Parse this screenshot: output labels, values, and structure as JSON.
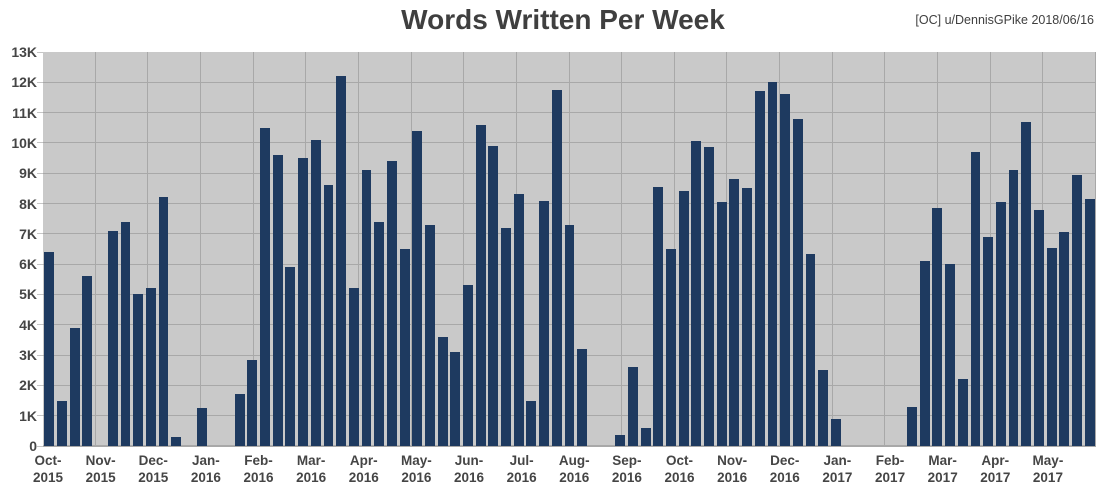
{
  "header": {
    "title": "Words Written Per Week",
    "attribution": "[OC] u/DennisGPike 2018/06/16"
  },
  "chart_data": {
    "type": "bar",
    "title": "Words Written Per Week",
    "ylabel": "",
    "xlabel": "",
    "ylim": [
      0,
      13000
    ],
    "y_tick_step": 1000,
    "y_tick_labels": [
      "0",
      "1K",
      "2K",
      "3K",
      "4K",
      "5K",
      "6K",
      "7K",
      "8K",
      "9K",
      "10K",
      "11K",
      "12K",
      "13K"
    ],
    "grid": true,
    "legend": "none",
    "x_labels": [
      "Oct-2015",
      "Nov-2015",
      "Dec-2015",
      "Jan-2016",
      "Feb-2016",
      "Mar-2016",
      "Apr-2016",
      "May-2016",
      "Jun-2016",
      "Jul-2016",
      "Aug-2016",
      "Sep-2016",
      "Oct-2016",
      "Nov-2016",
      "Dec-2016",
      "Jan-2017",
      "Feb-2017",
      "Mar-2017",
      "Apr-2017",
      "May-2017"
    ],
    "weekly_values": [
      6400,
      1500,
      3900,
      5600,
      0,
      7100,
      7400,
      5000,
      5200,
      8200,
      300,
      0,
      1250,
      0,
      0,
      1700,
      2850,
      10500,
      9600,
      5900,
      9500,
      10100,
      8600,
      12200,
      5200,
      9100,
      7400,
      9400,
      6500,
      10400,
      7300,
      3600,
      3100,
      5300,
      10600,
      9900,
      7200,
      8300,
      1500,
      8100,
      11750,
      7300,
      3200,
      0,
      0,
      350,
      2600,
      600,
      8550,
      6500,
      8400,
      10050,
      9850,
      8050,
      8800,
      8500,
      11700,
      12000,
      11600,
      10800,
      6350,
      2500,
      900,
      0,
      0,
      0,
      0,
      0,
      1300,
      6100,
      7850,
      6000,
      2200,
      9700,
      6900,
      8050,
      9100,
      10700,
      7800,
      6550,
      7050,
      8950,
      8150
    ],
    "colors": {
      "bar": "#1e3a60",
      "plot_background": "#c9c9c9",
      "gridline": "#a8a8a8",
      "text": "#3f3f3f"
    }
  }
}
